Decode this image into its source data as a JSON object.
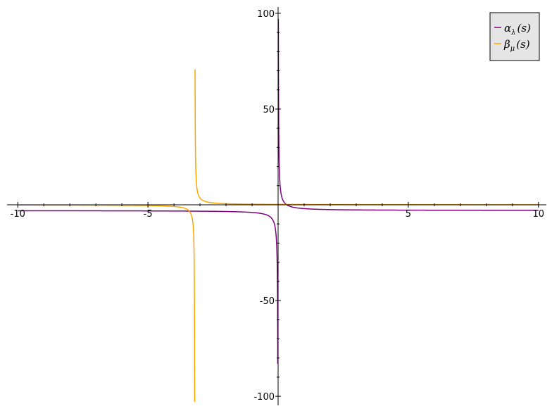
{
  "chart_data": {
    "type": "line",
    "title": "",
    "xlabel": "",
    "ylabel": "",
    "xlim": [
      -10.25,
      10.25
    ],
    "ylim": [
      -104,
      104
    ],
    "grid": false,
    "legend_position": "top-right",
    "x_ticks": [
      -10,
      -5,
      5,
      10
    ],
    "x_tick_labels": [
      "-10",
      "-5",
      "5",
      "10"
    ],
    "y_ticks": [
      -100,
      -50,
      50,
      100
    ],
    "y_tick_labels": [
      "-100",
      "-50",
      "50",
      "100"
    ],
    "series": [
      {
        "name": "α_λ(s)",
        "legend": {
          "base": "α",
          "sub": "λ",
          "arg": "(s)"
        },
        "color": "#800080",
        "function": "-3 + 1/s",
        "pole_x": 0,
        "asymptote_y": -3,
        "x_range": [
          -10,
          10
        ]
      },
      {
        "name": "β_μ(s)",
        "legend": {
          "base": "β",
          "sub": "μ",
          "arg": "(s)"
        },
        "color": "#FFA500",
        "function": "0.7 / (s + 3.2)",
        "pole_x": -3.2,
        "asymptote_y": 0,
        "x_range": [
          -10,
          10
        ]
      }
    ]
  }
}
